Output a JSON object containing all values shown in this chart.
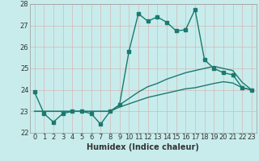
{
  "xlabel": "Humidex (Indice chaleur)",
  "bg_color": "#c8ecec",
  "grid_color": "#b0d4d4",
  "line_color": "#1a7a6e",
  "xlim": [
    -0.5,
    23.5
  ],
  "ylim": [
    22,
    28
  ],
  "yticks": [
    22,
    23,
    24,
    25,
    26,
    27,
    28
  ],
  "xticks": [
    0,
    1,
    2,
    3,
    4,
    5,
    6,
    7,
    8,
    9,
    10,
    11,
    12,
    13,
    14,
    15,
    16,
    17,
    18,
    19,
    20,
    21,
    22,
    23
  ],
  "series1_x": [
    0,
    1,
    2,
    3,
    4,
    5,
    6,
    7,
    8,
    9,
    10,
    11,
    12,
    13,
    14,
    15,
    16,
    17,
    18,
    19,
    20,
    21,
    22,
    23
  ],
  "series1_y": [
    23.9,
    22.9,
    22.5,
    22.9,
    23.0,
    23.0,
    22.9,
    22.4,
    23.0,
    23.3,
    25.8,
    27.55,
    27.2,
    27.4,
    27.15,
    26.75,
    26.8,
    27.75,
    25.4,
    25.0,
    24.8,
    24.7,
    24.1,
    24.0
  ],
  "series2_x": [
    0,
    5,
    6,
    7,
    8,
    9,
    10,
    11,
    12,
    13,
    14,
    15,
    16,
    17,
    18,
    19,
    20,
    21,
    22,
    23
  ],
  "series2_y": [
    23.0,
    23.0,
    23.0,
    23.0,
    23.0,
    23.3,
    23.6,
    23.9,
    24.15,
    24.3,
    24.5,
    24.65,
    24.8,
    24.9,
    25.0,
    25.1,
    25.0,
    24.9,
    24.35,
    24.0
  ],
  "series3_x": [
    0,
    5,
    6,
    7,
    8,
    9,
    10,
    11,
    12,
    13,
    14,
    15,
    16,
    17,
    18,
    19,
    20,
    21,
    22,
    23
  ],
  "series3_y": [
    23.0,
    23.0,
    23.0,
    23.0,
    23.0,
    23.2,
    23.35,
    23.5,
    23.65,
    23.75,
    23.85,
    23.95,
    24.05,
    24.1,
    24.2,
    24.3,
    24.38,
    24.32,
    24.1,
    24.0
  ],
  "marker_size": 2.5,
  "line_width": 1.0,
  "font_size_tick": 6,
  "font_size_label": 7
}
